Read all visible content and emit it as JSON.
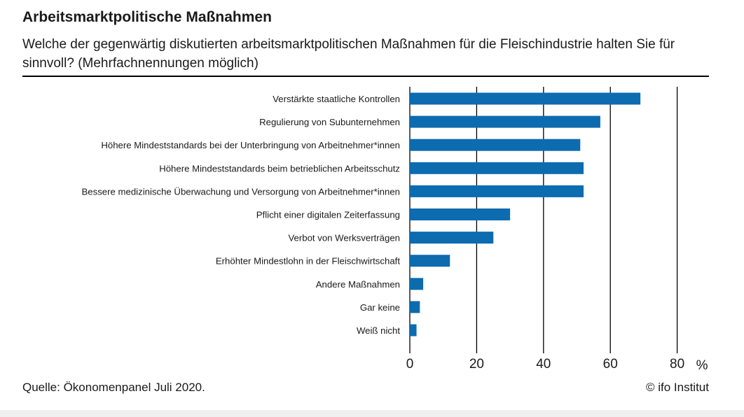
{
  "title": "Arbeitsmarktpolitische Maßnahmen",
  "subtitle": "Welche der gegenwärtig diskutierten arbeitsmarktpolitischen Maßnahmen für die Fleischindustrie halten Sie für sinnvoll? (Mehrfachnennungen möglich)",
  "source": "Quelle: Ökonomenpanel Juli 2020.",
  "copyright": "© ifo Institut",
  "colors": {
    "bar": "#0d6bb0",
    "grid": "#000000",
    "text": "#1a1a1a"
  },
  "chart_data": {
    "type": "bar",
    "orientation": "horizontal",
    "categories": [
      "Verstärkte staatliche Kontrollen",
      "Regulierung von Subunternehmen",
      "Höhere Mindeststandards  bei der Unterbringung von Arbeitnehmer*innen",
      "Höhere Mindeststandards beim betrieblichen Arbeitsschutz",
      "Bessere medizinische  Überwachung  und Versorgung von Arbeitnehmer*innen",
      "Pflicht einer digitalen Zeiterfassung",
      "Verbot von Werksverträgen",
      "Erhöhter Mindestlohn in der Fleischwirtschaft",
      "Andere Maßnahmen",
      "Gar keine",
      "Weiß nicht"
    ],
    "values": [
      69,
      57,
      51,
      52,
      52,
      30,
      25,
      12,
      4,
      3,
      2
    ],
    "xlim": [
      0,
      80
    ],
    "xticks": [
      "0",
      "20",
      "40",
      "60",
      "80"
    ],
    "xunit": "%",
    "grid": true
  }
}
